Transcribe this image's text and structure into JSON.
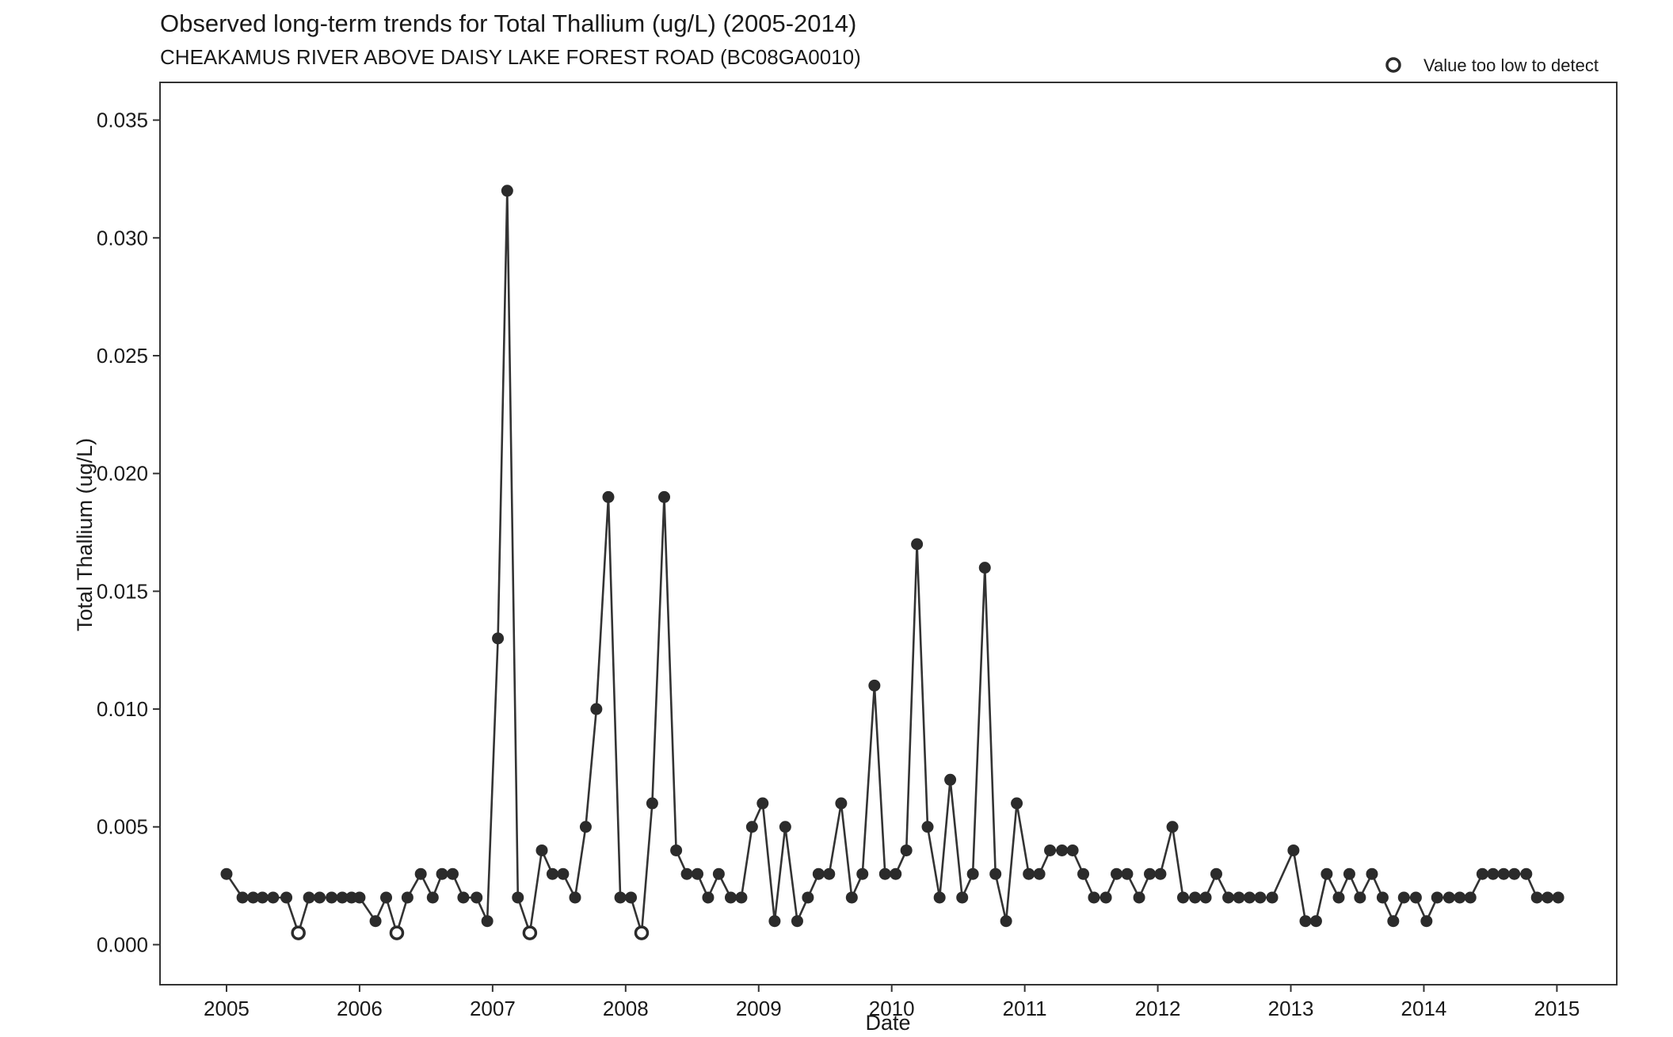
{
  "chart_data": {
    "type": "line",
    "title": "Observed long-term trends for Total Thallium (ug/L) (2005-2014)",
    "subtitle": "CHEAKAMUS RIVER ABOVE DAISY LAKE FOREST ROAD (BC08GA0010)",
    "xlabel": "Date",
    "ylabel": "Total Thallium (ug/L)",
    "xlim": [
      2004.5,
      2015.45
    ],
    "ylim": [
      -0.0017,
      0.0366
    ],
    "xticks": [
      2005,
      2006,
      2007,
      2008,
      2009,
      2010,
      2011,
      2012,
      2013,
      2014,
      2015
    ],
    "yticks": [
      0.0,
      0.005,
      0.01,
      0.015,
      0.02,
      0.025,
      0.03,
      0.035
    ],
    "ytick_labels": [
      "0.000",
      "0.005",
      "0.010",
      "0.015",
      "0.020",
      "0.025",
      "0.030",
      "0.035"
    ],
    "grid": false,
    "legend": {
      "position": "top-right",
      "label": "Value too low to detect",
      "marker": "open-circle"
    },
    "colors": {
      "line": "#333333",
      "point": "#2b2b2b",
      "frame": "#333333"
    },
    "series": [
      {
        "x": [
          2005.0,
          2005.12,
          2005.2,
          2005.27,
          2005.35,
          2005.45,
          2005.54,
          2005.62,
          2005.7,
          2005.79,
          2005.87,
          2005.94,
          2006.0,
          2006.12,
          2006.2,
          2006.28,
          2006.36,
          2006.46,
          2006.55,
          2006.62,
          2006.7,
          2006.78,
          2006.88,
          2006.96,
          2007.04,
          2007.11,
          2007.19,
          2007.28,
          2007.37,
          2007.45,
          2007.53,
          2007.62,
          2007.7,
          2007.78,
          2007.87,
          2007.96,
          2008.04,
          2008.12,
          2008.2,
          2008.29,
          2008.38,
          2008.46,
          2008.54,
          2008.62,
          2008.7,
          2008.79,
          2008.87,
          2008.95,
          2009.03,
          2009.12,
          2009.2,
          2009.29,
          2009.37,
          2009.45,
          2009.53,
          2009.62,
          2009.7,
          2009.78,
          2009.87,
          2009.95,
          2010.03,
          2010.11,
          2010.19,
          2010.27,
          2010.36,
          2010.44,
          2010.53,
          2010.61,
          2010.7,
          2010.78,
          2010.86,
          2010.94,
          2011.03,
          2011.11,
          2011.19,
          2011.28,
          2011.36,
          2011.44,
          2011.52,
          2011.61,
          2011.69,
          2011.77,
          2011.86,
          2011.94,
          2012.02,
          2012.11,
          2012.19,
          2012.28,
          2012.36,
          2012.44,
          2012.53,
          2012.61,
          2012.69,
          2012.77,
          2012.86,
          2013.02,
          2013.11,
          2013.19,
          2013.27,
          2013.36,
          2013.44,
          2013.52,
          2013.61,
          2013.69,
          2013.77,
          2013.85,
          2013.94,
          2014.02,
          2014.1,
          2014.19,
          2014.27,
          2014.35,
          2014.44,
          2014.52,
          2014.6,
          2014.68,
          2014.77,
          2014.85,
          2014.93,
          2015.01
        ],
        "y": [
          0.003,
          0.002,
          0.002,
          0.002,
          0.002,
          0.002,
          0.0005,
          0.002,
          0.002,
          0.002,
          0.002,
          0.002,
          0.002,
          0.001,
          0.002,
          0.0005,
          0.002,
          0.003,
          0.002,
          0.003,
          0.003,
          0.002,
          0.002,
          0.001,
          0.013,
          0.032,
          0.002,
          0.0005,
          0.004,
          0.003,
          0.003,
          0.002,
          0.005,
          0.01,
          0.019,
          0.002,
          0.002,
          0.0005,
          0.006,
          0.019,
          0.004,
          0.003,
          0.003,
          0.002,
          0.003,
          0.002,
          0.002,
          0.005,
          0.006,
          0.001,
          0.005,
          0.001,
          0.002,
          0.003,
          0.003,
          0.006,
          0.002,
          0.003,
          0.011,
          0.003,
          0.003,
          0.004,
          0.017,
          0.005,
          0.002,
          0.007,
          0.002,
          0.003,
          0.016,
          0.003,
          0.001,
          0.006,
          0.003,
          0.003,
          0.004,
          0.004,
          0.004,
          0.003,
          0.002,
          0.002,
          0.003,
          0.003,
          0.002,
          0.003,
          0.003,
          0.005,
          0.002,
          0.002,
          0.002,
          0.003,
          0.002,
          0.002,
          0.002,
          0.002,
          0.002,
          0.004,
          0.001,
          0.001,
          0.003,
          0.002,
          0.003,
          0.002,
          0.003,
          0.002,
          0.001,
          0.002,
          0.002,
          0.001,
          0.002,
          0.002,
          0.002,
          0.002,
          0.003,
          0.003,
          0.003,
          0.003,
          0.003,
          0.002,
          0.002,
          0.002
        ],
        "below_detection": [
          false,
          false,
          false,
          false,
          false,
          false,
          true,
          false,
          false,
          false,
          false,
          false,
          false,
          false,
          false,
          true,
          false,
          false,
          false,
          false,
          false,
          false,
          false,
          false,
          false,
          false,
          false,
          true,
          false,
          false,
          false,
          false,
          false,
          false,
          false,
          false,
          false,
          true,
          false,
          false,
          false,
          false,
          false,
          false,
          false,
          false,
          false,
          false,
          false,
          false,
          false,
          false,
          false,
          false,
          false,
          false,
          false,
          false,
          false,
          false,
          false,
          false,
          false,
          false,
          false,
          false,
          false,
          false,
          false,
          false,
          false,
          false,
          false,
          false,
          false,
          false,
          false,
          false,
          false,
          false,
          false,
          false,
          false,
          false,
          false,
          false,
          false,
          false,
          false,
          false,
          false,
          false,
          false,
          false,
          false,
          false,
          false,
          false,
          false,
          false,
          false,
          false,
          false,
          false,
          false,
          false,
          false,
          false,
          false,
          false,
          false,
          false,
          false,
          false,
          false,
          false,
          false,
          false,
          false,
          false
        ]
      }
    ]
  }
}
